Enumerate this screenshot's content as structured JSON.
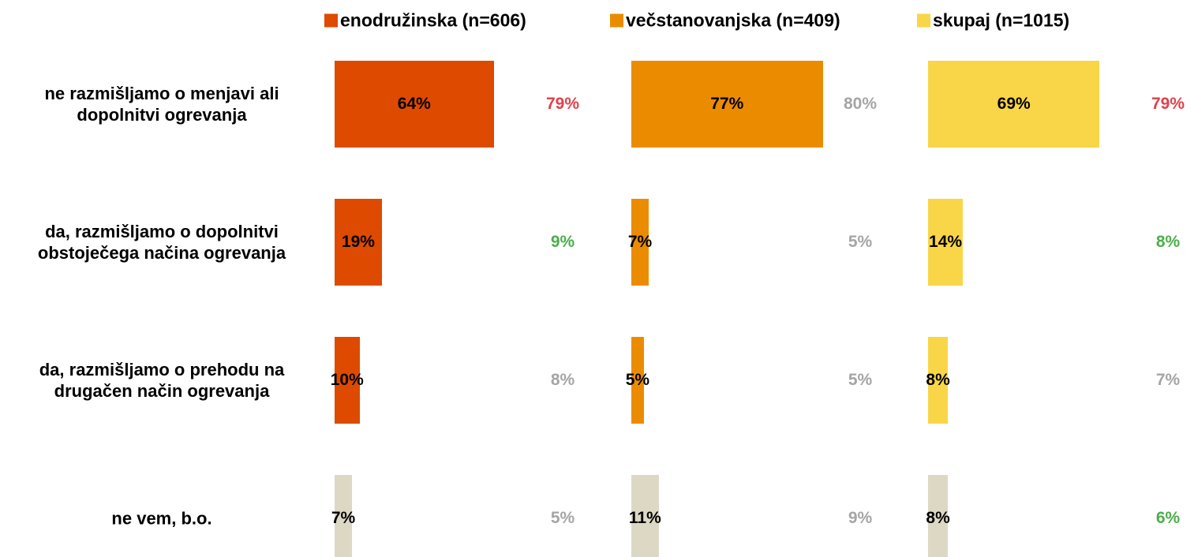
{
  "chart_data": {
    "type": "bar",
    "orientation": "horizontal",
    "categories": [
      "ne razmišljamo o menjavi ali dopolnitvi ogrevanja",
      "da, razmišljamo o dopolnitvi obstoječega načina ogrevanja",
      "da, razmišljamo o prehodu na drugačen način ogrevanja",
      "ne vem, b.o."
    ],
    "series": [
      {
        "name": "enodružinska (n=606)",
        "color": "#dd4a00",
        "colors": [
          "#dd4a00",
          "#dd4a00",
          "#dd4a00",
          "#ddd8c4"
        ],
        "values": [
          64,
          19,
          10,
          7
        ],
        "value_labels": [
          "64%",
          "19%",
          "10%",
          "7%"
        ],
        "comparison": [
          79,
          9,
          8,
          5
        ],
        "comparison_labels": [
          "79%",
          "9%",
          "8%",
          "5%"
        ],
        "comparison_colors": [
          "#e0404a",
          "#4cae4c",
          "#a5a5a5",
          "#a5a5a5"
        ]
      },
      {
        "name": "večstanovanjska (n=409)",
        "color": "#eb8c00",
        "colors": [
          "#eb8c00",
          "#eb8c00",
          "#eb8c00",
          "#ddd8c4"
        ],
        "values": [
          77,
          7,
          5,
          11
        ],
        "value_labels": [
          "77%",
          "7%",
          "5%",
          "11%"
        ],
        "comparison": [
          80,
          5,
          5,
          9
        ],
        "comparison_labels": [
          "80%",
          "5%",
          "5%",
          "9%"
        ],
        "comparison_colors": [
          "#a5a5a5",
          "#a5a5a5",
          "#a5a5a5",
          "#a5a5a5"
        ]
      },
      {
        "name": "skupaj (n=1015)",
        "color": "#f9d548",
        "colors": [
          "#f9d548",
          "#f9d548",
          "#f9d548",
          "#ddd8c4"
        ],
        "values": [
          69,
          14,
          8,
          8
        ],
        "value_labels": [
          "69%",
          "14%",
          "8%",
          "8%"
        ],
        "comparison": [
          79,
          8,
          7,
          6
        ],
        "comparison_labels": [
          "79%",
          "8%",
          "7%",
          "6%"
        ],
        "comparison_colors": [
          "#e0404a",
          "#4cae4c",
          "#a5a5a5",
          "#4cae4c"
        ]
      }
    ]
  }
}
